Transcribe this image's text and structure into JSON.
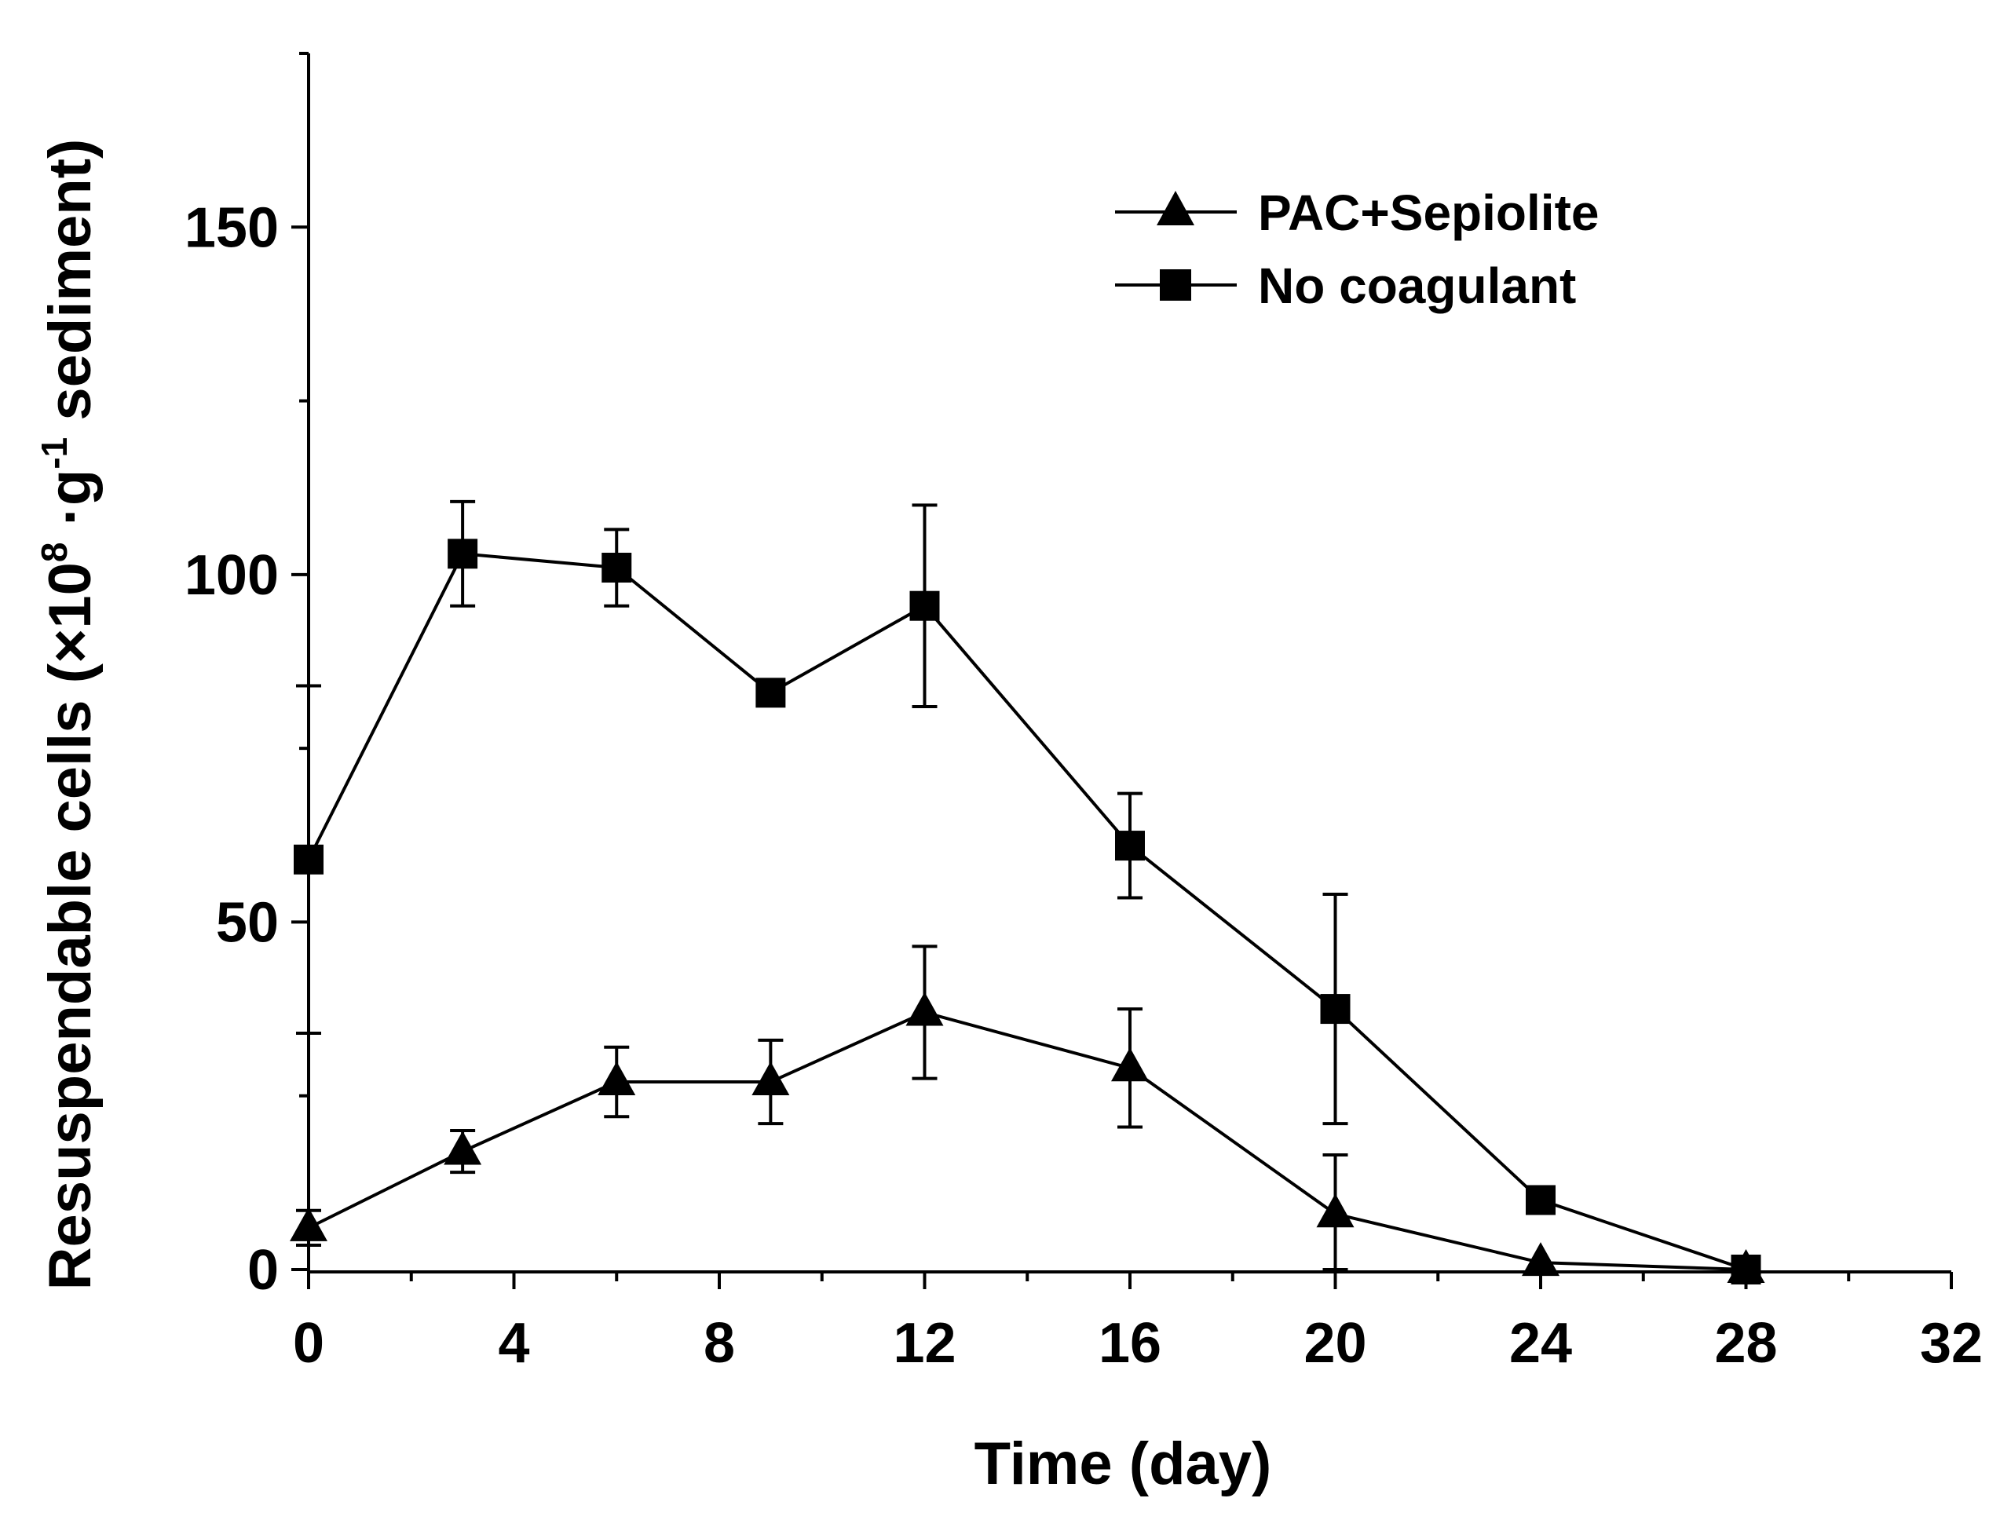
{
  "chart_data": {
    "type": "line",
    "title": "",
    "xlabel": "Time (day)",
    "ylabel": {
      "main": "Resuspendable cells (×10",
      "exp1": "8",
      "mid": " ·g",
      "exp2": "-1",
      "end": " sediment)"
    },
    "xlim": [
      0,
      32
    ],
    "ylim": [
      0,
      175
    ],
    "xticks": [
      0,
      4,
      8,
      12,
      16,
      20,
      24,
      28,
      32
    ],
    "xtick_labels": [
      "0",
      "4",
      "8",
      "12",
      "16",
      "20",
      "24",
      "28",
      "32"
    ],
    "yticks": [
      0,
      50,
      100,
      150
    ],
    "ytick_labels": [
      "0",
      "50",
      "100",
      "150"
    ],
    "legend_position": "top-right",
    "series": [
      {
        "name": "PAC+Sepiolite",
        "marker": "triangle",
        "x": [
          0,
          3,
          6,
          9,
          12,
          16,
          20,
          24,
          28
        ],
        "y": [
          6,
          17,
          27,
          27,
          37,
          29,
          8,
          1,
          0
        ],
        "err": [
          2.5,
          3,
          5,
          6,
          9.5,
          8.5,
          8.5,
          0,
          0
        ]
      },
      {
        "name": "No coagulant",
        "marker": "square",
        "x": [
          0,
          3,
          6,
          9,
          12,
          16,
          20,
          24,
          28
        ],
        "y": [
          59,
          103,
          101,
          83,
          95.5,
          61,
          37.5,
          10,
          0
        ],
        "err": [
          25,
          7.5,
          5.5,
          0,
          14.5,
          7.5,
          16.5,
          0,
          0
        ]
      }
    ]
  }
}
